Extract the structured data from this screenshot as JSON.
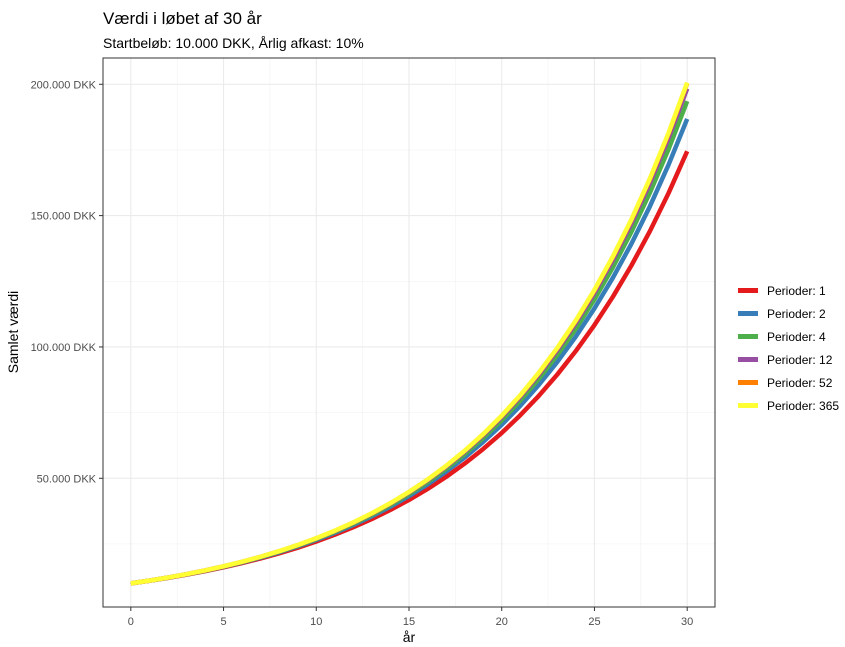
{
  "title": "Værdi i løbet af 30 år",
  "subtitle": "Startbeløb: 10.000 DKK, Årlig afkast: 10%",
  "chart_data": {
    "type": "line",
    "title": "Værdi i løbet af 30 år",
    "subtitle": "Startbeløb: 10.000 DKK, Årlig afkast: 10%",
    "xlabel": "år",
    "ylabel": "Samlet værdi",
    "xlim": [
      -1.5,
      31.5
    ],
    "ylim": [
      1000,
      210000
    ],
    "x_ticks": [
      0,
      5,
      10,
      15,
      20,
      25,
      30
    ],
    "x_tick_labels": [
      "0",
      "5",
      "10",
      "15",
      "20",
      "25",
      "30"
    ],
    "y_ticks": [
      50000,
      100000,
      150000,
      200000
    ],
    "y_tick_labels": [
      "50.000 DKK",
      "100.000 DKK",
      "150.000 DKK",
      "200.000 DKK"
    ],
    "grid": true,
    "legend_position": "right",
    "x": [
      0,
      1,
      2,
      3,
      4,
      5,
      6,
      7,
      8,
      9,
      10,
      11,
      12,
      13,
      14,
      15,
      16,
      17,
      18,
      19,
      20,
      21,
      22,
      23,
      24,
      25,
      26,
      27,
      28,
      29,
      30
    ],
    "series": [
      {
        "name": "Perioder: 1",
        "color": "#E41A1C",
        "values": [
          10000,
          11000,
          12100,
          13310,
          14641,
          16105,
          17716,
          19487,
          21436,
          23579,
          25937,
          28531,
          31384,
          34523,
          37975,
          41772,
          45950,
          50545,
          55599,
          61159,
          67275,
          74002,
          81403,
          89543,
          98497,
          108347,
          119182,
          131100,
          144210,
          158631,
          174494
        ]
      },
      {
        "name": "Perioder: 2",
        "color": "#377EB8",
        "values": [
          10000,
          11025,
          12155,
          13401,
          14775,
          16289,
          17959,
          19799,
          21829,
          24066,
          26533,
          29253,
          32251,
          35557,
          39201,
          43219,
          47649,
          52533,
          57918,
          63855,
          70400,
          77616,
          85571,
          94342,
          104012,
          114674,
          126426,
          139385,
          153672,
          169423,
          186792
        ]
      },
      {
        "name": "Perioder: 4",
        "color": "#4DAF4A",
        "values": [
          10000,
          11038,
          12184,
          13449,
          14845,
          16386,
          18087,
          19965,
          22038,
          24325,
          26851,
          29638,
          32715,
          36111,
          39860,
          43998,
          48565,
          53607,
          59172,
          65315,
          72096,
          79580,
          87842,
          96961,
          107027,
          118137,
          130402,
          143939,
          158882,
          175376,
          193582
        ]
      },
      {
        "name": "Perioder: 12",
        "color": "#984EA3",
        "values": [
          10000,
          11047,
          12204,
          13482,
          14894,
          16453,
          18176,
          20079,
          22182,
          24504,
          27070,
          29905,
          33036,
          36496,
          40317,
          44539,
          49203,
          54355,
          60047,
          66335,
          73281,
          80955,
          89432,
          98797,
          109143,
          120572,
          133198,
          147146,
          162554,
          179576,
          198374
        ]
      },
      {
        "name": "Perioder: 52",
        "color": "#FF7F00",
        "values": [
          10000,
          11051,
          12212,
          13495,
          14913,
          16480,
          18212,
          20125,
          22240,
          24577,
          27159,
          30012,
          33166,
          36650,
          40502,
          44757,
          49460,
          54657,
          60400,
          66747,
          73760,
          81511,
          90076,
          99540,
          110000,
          121558,
          134331,
          148446,
          164044,
          181281,
          200329
        ]
      },
      {
        "name": "Perioder: 365",
        "color": "#FFFF33",
        "values": [
          10000,
          11052,
          12214,
          13498,
          14917,
          16486,
          18219,
          20134,
          22251,
          24591,
          27176,
          30033,
          33190,
          36680,
          40536,
          44797,
          49507,
          54711,
          60463,
          66820,
          73844,
          81607,
          90187,
          99668,
          110146,
          121726,
          134522,
          148664,
          164293,
          181565,
          200652
        ]
      }
    ]
  }
}
